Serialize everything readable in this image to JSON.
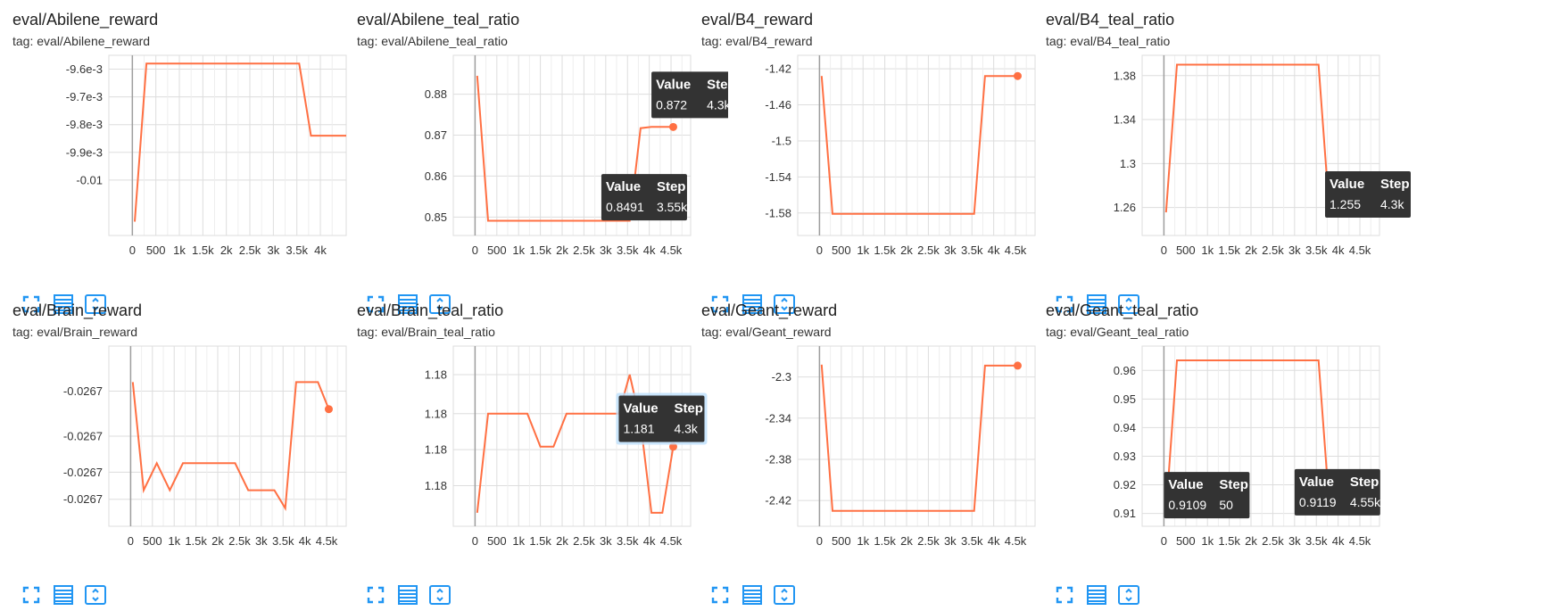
{
  "colors": {
    "series": "#ff7043",
    "grid": "#dddddd",
    "axis": "#9e9e9e",
    "tool": "#2196f3",
    "tooltip_bg": "#333333"
  },
  "tool_icons": [
    "fullscreen-icon",
    "data-table-icon",
    "fit-domain-icon"
  ],
  "tooltip_header": {
    "value": "Value",
    "step": "Step"
  },
  "cards": [
    {
      "title": "eval/Abilene_reward",
      "tag": "tag: eval/Abilene_reward",
      "chart_data": {
        "type": "line",
        "x": [
          50,
          300,
          600,
          900,
          1200,
          1500,
          1800,
          2100,
          2400,
          2700,
          3000,
          3300,
          3550,
          3800,
          4050,
          4300,
          4550
        ],
        "y": [
          -0.01015,
          -0.00958,
          -0.00958,
          -0.00958,
          -0.00958,
          -0.00958,
          -0.00958,
          -0.00958,
          -0.00958,
          -0.00958,
          -0.00958,
          -0.00958,
          -0.00958,
          -0.00984,
          -0.00984,
          -0.00984,
          -0.00984
        ],
        "xlim": [
          -500,
          4550
        ],
        "ylim": [
          -0.0102,
          -0.00955
        ],
        "xticks": [
          0,
          500,
          1000,
          1500,
          2000,
          2500,
          3000,
          3500,
          4000
        ],
        "xtick_labels": [
          "0",
          "500",
          "1k",
          "1.5k",
          "2k",
          "2.5k",
          "3k",
          "3.5k",
          "4k"
        ],
        "yticks": [
          -0.0096,
          -0.0097,
          -0.0098,
          -0.0099,
          -0.01
        ],
        "ytick_labels": [
          "-9.6e-3",
          "-9.7e-3",
          "-9.8e-3",
          "-9.9e-3",
          "-0.01"
        ],
        "end_marker": false,
        "tooltips": []
      }
    },
    {
      "title": "eval/Abilene_teal_ratio",
      "tag": "tag: eval/Abilene_teal_ratio",
      "chart_data": {
        "type": "line",
        "x": [
          50,
          300,
          600,
          900,
          1200,
          1500,
          1800,
          2100,
          2400,
          2700,
          3000,
          3300,
          3550,
          3800,
          4050,
          4300,
          4550
        ],
        "y": [
          0.8845,
          0.8491,
          0.8491,
          0.8491,
          0.8491,
          0.8491,
          0.8491,
          0.8491,
          0.8491,
          0.8491,
          0.8491,
          0.8491,
          0.8491,
          0.8717,
          0.872,
          0.872,
          0.872
        ],
        "xlim": [
          -500,
          4950
        ],
        "ylim": [
          0.8455,
          0.8895
        ],
        "xticks": [
          0,
          500,
          1000,
          1500,
          2000,
          2500,
          3000,
          3500,
          4000,
          4500
        ],
        "xtick_labels": [
          "0",
          "500",
          "1k",
          "1.5k",
          "2k",
          "2.5k",
          "3k",
          "3.5k",
          "4k",
          "4.5k"
        ],
        "yticks": [
          0.88,
          0.87,
          0.86,
          0.85
        ],
        "ytick_labels": [
          "0.88",
          "0.87",
          "0.86",
          "0.85"
        ],
        "end_marker": true,
        "tooltips": [
          {
            "value": "0.872",
            "step": "4.3k",
            "at_x": 4050,
            "at_y": 0.8855
          },
          {
            "value": "0.8491",
            "step": "3.55k",
            "at_x": 2900,
            "at_y": 0.8605
          }
        ]
      }
    },
    {
      "title": "eval/B4_reward",
      "tag": "tag: eval/B4_reward",
      "chart_data": {
        "type": "line",
        "x": [
          50,
          300,
          600,
          900,
          1200,
          1500,
          1800,
          2100,
          2400,
          2700,
          3000,
          3300,
          3550,
          3800,
          4050,
          4300,
          4550
        ],
        "y": [
          -1.428,
          -1.581,
          -1.581,
          -1.581,
          -1.581,
          -1.581,
          -1.581,
          -1.581,
          -1.581,
          -1.581,
          -1.581,
          -1.581,
          -1.581,
          -1.428,
          -1.428,
          -1.428,
          -1.428
        ],
        "xlim": [
          -500,
          4950
        ],
        "ylim": [
          -1.605,
          -1.405
        ],
        "xticks": [
          0,
          500,
          1000,
          1500,
          2000,
          2500,
          3000,
          3500,
          4000,
          4500
        ],
        "xtick_labels": [
          "0",
          "500",
          "1k",
          "1.5k",
          "2k",
          "2.5k",
          "3k",
          "3.5k",
          "4k",
          "4.5k"
        ],
        "yticks": [
          -1.42,
          -1.46,
          -1.5,
          -1.54,
          -1.58
        ],
        "ytick_labels": [
          "-1.42",
          "-1.46",
          "-1.5",
          "-1.54",
          "-1.58"
        ],
        "end_marker": true,
        "tooltips": []
      }
    },
    {
      "title": "eval/B4_teal_ratio",
      "tag": "tag: eval/B4_teal_ratio",
      "chart_data": {
        "type": "line",
        "x": [
          50,
          300,
          600,
          900,
          1200,
          1500,
          1800,
          2100,
          2400,
          2700,
          3000,
          3300,
          3550,
          3800,
          4050,
          4300,
          4550
        ],
        "y": [
          1.2555,
          1.39,
          1.39,
          1.39,
          1.39,
          1.39,
          1.39,
          1.39,
          1.39,
          1.39,
          1.39,
          1.39,
          1.39,
          1.255,
          1.255,
          1.255,
          1.255
        ],
        "xlim": [
          -500,
          4950
        ],
        "ylim": [
          1.2345,
          1.3985
        ],
        "xticks": [
          0,
          500,
          1000,
          1500,
          2000,
          2500,
          3000,
          3500,
          4000,
          4500
        ],
        "xtick_labels": [
          "0",
          "500",
          "1k",
          "1.5k",
          "2k",
          "2.5k",
          "3k",
          "3.5k",
          "4k",
          "4.5k"
        ],
        "yticks": [
          1.38,
          1.34,
          1.3,
          1.26
        ],
        "ytick_labels": [
          "1.38",
          "1.34",
          "1.3",
          "1.26"
        ],
        "end_marker": true,
        "tooltips": [
          {
            "value": "1.255",
            "step": "4.3k",
            "at_x": 3700,
            "at_y": 1.293
          }
        ]
      }
    },
    {
      "title": "eval/Brain_reward",
      "tag": "tag: eval/Brain_reward",
      "chart_data": {
        "type": "line",
        "x": [
          50,
          300,
          600,
          900,
          1200,
          1500,
          1800,
          2100,
          2400,
          2700,
          3000,
          3300,
          3550,
          3800,
          4050,
          4300,
          4550
        ],
        "y": [
          -0.026694,
          -0.026706,
          -0.026703,
          -0.026706,
          -0.026703,
          -0.026703,
          -0.026703,
          -0.026703,
          -0.026703,
          -0.026706,
          -0.026706,
          -0.026706,
          -0.026708,
          -0.026694,
          -0.026694,
          -0.026694,
          -0.026697
        ],
        "xlim": [
          -500,
          4950
        ],
        "ylim": [
          -0.02671,
          -0.02669
        ],
        "xticks": [
          0,
          500,
          1000,
          1500,
          2000,
          2500,
          3000,
          3500,
          4000,
          4500
        ],
        "xtick_labels": [
          "0",
          "500",
          "1k",
          "1.5k",
          "2k",
          "2.5k",
          "3k",
          "3.5k",
          "4k",
          "4.5k"
        ],
        "yticks": [
          -0.026695,
          -0.0267,
          -0.026704,
          -0.026707
        ],
        "ytick_labels": [
          "-0.0267",
          "-0.0267",
          "-0.0267",
          "-0.0267"
        ],
        "end_marker": true,
        "tooltips": []
      }
    },
    {
      "title": "eval/Brain_teal_ratio",
      "tag": "tag: eval/Brain_teal_ratio",
      "chart_data": {
        "type": "line",
        "x": [
          50,
          300,
          600,
          900,
          1200,
          1500,
          1800,
          2100,
          2400,
          2700,
          3000,
          3300,
          3550,
          3800,
          4050,
          4300,
          4550
        ],
        "y": [
          1.1779,
          1.1812,
          1.1812,
          1.1812,
          1.1812,
          1.1801,
          1.1801,
          1.1812,
          1.1812,
          1.1812,
          1.1812,
          1.1812,
          1.1825,
          1.1809,
          1.1779,
          1.1779,
          1.1801
        ],
        "xlim": [
          -500,
          4950
        ],
        "ylim": [
          1.17745,
          1.18345
        ],
        "xticks": [
          0,
          500,
          1000,
          1500,
          2000,
          2500,
          3000,
          3500,
          4000,
          4500
        ],
        "xtick_labels": [
          "0",
          "500",
          "1k",
          "1.5k",
          "2k",
          "2.5k",
          "3k",
          "3.5k",
          "4k",
          "4.5k"
        ],
        "yticks": [
          1.1825,
          1.1812,
          1.18,
          1.1788
        ],
        "ytick_labels": [
          "1.18",
          "1.18",
          "1.18",
          "1.18"
        ],
        "end_marker": true,
        "tooltips": [
          {
            "value": "1.181",
            "step": "4.3k",
            "at_x": 3300,
            "at_y": 1.1818,
            "highlighted": true
          }
        ]
      }
    },
    {
      "title": "eval/Geant_reward",
      "tag": "tag: eval/Geant_reward",
      "chart_data": {
        "type": "line",
        "x": [
          50,
          300,
          600,
          900,
          1200,
          1500,
          1800,
          2100,
          2400,
          2700,
          3000,
          3300,
          3550,
          3800,
          4050,
          4300,
          4550
        ],
        "y": [
          -2.288,
          -2.43,
          -2.43,
          -2.43,
          -2.43,
          -2.43,
          -2.43,
          -2.43,
          -2.43,
          -2.43,
          -2.43,
          -2.43,
          -2.43,
          -2.289,
          -2.289,
          -2.289,
          -2.289
        ],
        "xlim": [
          -500,
          4950
        ],
        "ylim": [
          -2.445,
          -2.27
        ],
        "xticks": [
          0,
          500,
          1000,
          1500,
          2000,
          2500,
          3000,
          3500,
          4000,
          4500
        ],
        "xtick_labels": [
          "0",
          "500",
          "1k",
          "1.5k",
          "2k",
          "2.5k",
          "3k",
          "3.5k",
          "4k",
          "4.5k"
        ],
        "yticks": [
          -2.3,
          -2.34,
          -2.38,
          -2.42
        ],
        "ytick_labels": [
          "-2.3",
          "-2.34",
          "-2.38",
          "-2.42"
        ],
        "end_marker": true,
        "tooltips": []
      }
    },
    {
      "title": "eval/Geant_teal_ratio",
      "tag": "tag: eval/Geant_teal_ratio",
      "chart_data": {
        "type": "line",
        "x": [
          50,
          300,
          600,
          900,
          1200,
          1500,
          1800,
          2100,
          2400,
          2700,
          3000,
          3300,
          3550,
          3800,
          4050,
          4300,
          4550
        ],
        "y": [
          0.9109,
          0.9635,
          0.9635,
          0.9635,
          0.9635,
          0.9635,
          0.9635,
          0.9635,
          0.9635,
          0.9635,
          0.9635,
          0.9635,
          0.9635,
          0.9119,
          0.9119,
          0.9119,
          0.9119
        ],
        "xlim": [
          -500,
          4950
        ],
        "ylim": [
          0.9055,
          0.9685
        ],
        "xticks": [
          0,
          500,
          1000,
          1500,
          2000,
          2500,
          3000,
          3500,
          4000,
          4500
        ],
        "xtick_labels": [
          "0",
          "500",
          "1k",
          "1.5k",
          "2k",
          "2.5k",
          "3k",
          "3.5k",
          "4k",
          "4.5k"
        ],
        "yticks": [
          0.96,
          0.95,
          0.94,
          0.93,
          0.92,
          0.91
        ],
        "ytick_labels": [
          "0.96",
          "0.95",
          "0.94",
          "0.93",
          "0.92",
          "0.91"
        ],
        "end_marker": true,
        "tooltips": [
          {
            "value": "0.9109",
            "step": "50",
            "at_x": 0,
            "at_y": 0.9245
          },
          {
            "value": "0.9119",
            "step": "4.55k",
            "at_x": 3000,
            "at_y": 0.9255
          }
        ]
      }
    }
  ]
}
